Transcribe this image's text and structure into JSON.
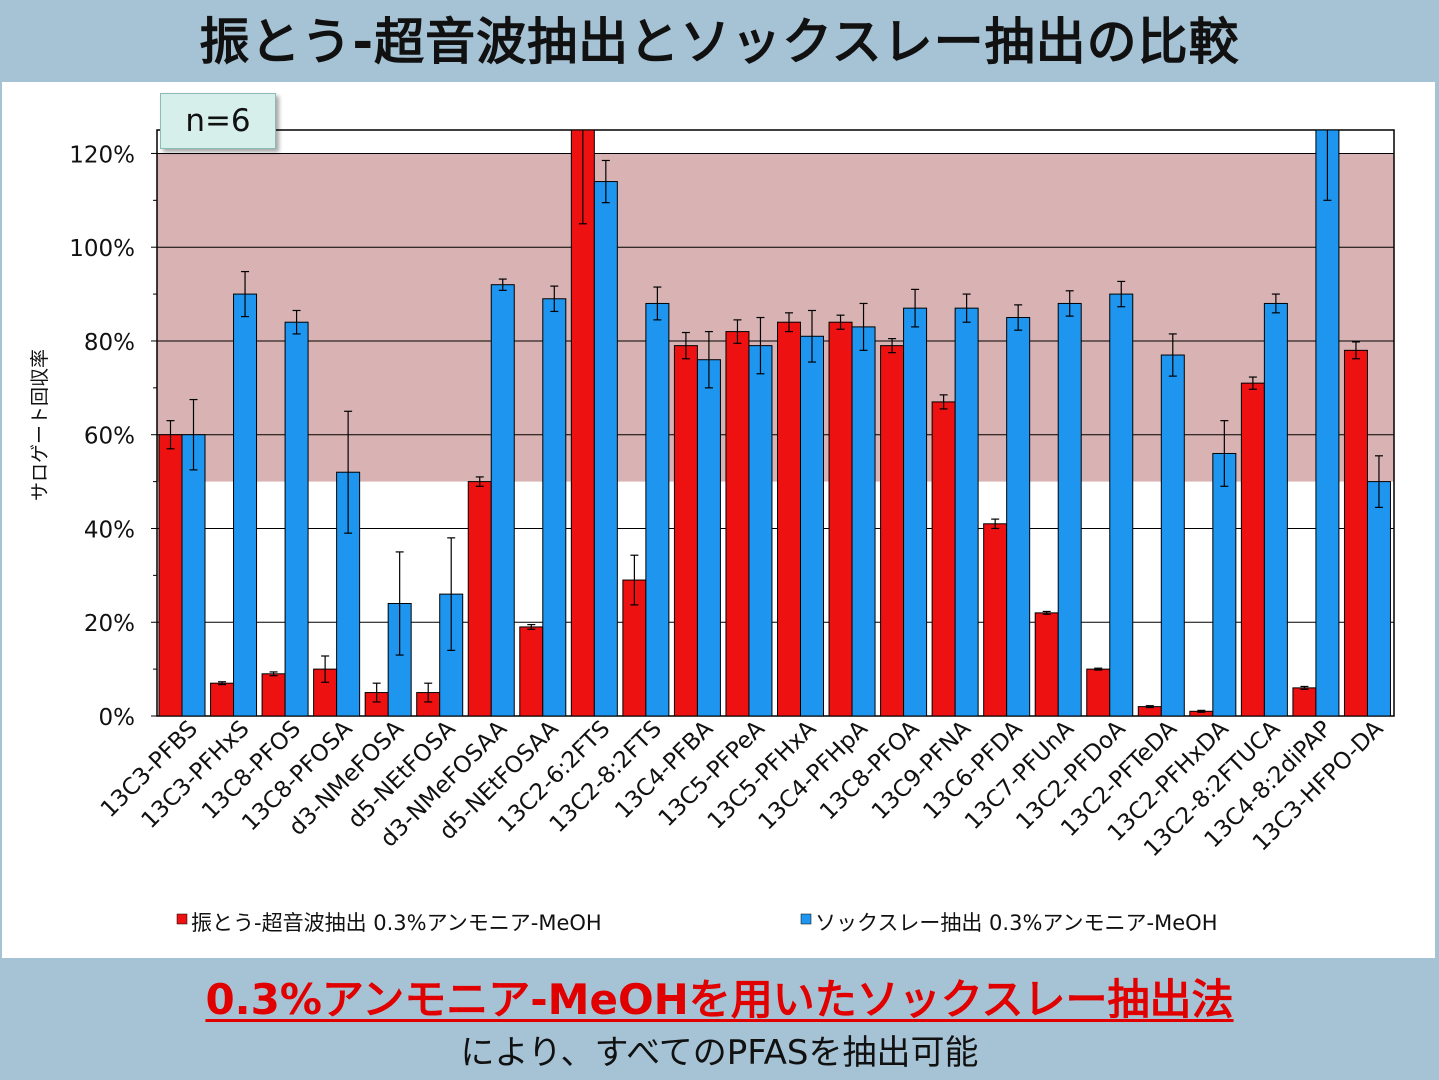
{
  "slide_title": "振とう-超音波抽出とソックスレー抽出の比較",
  "badge": "n=6",
  "footer": {
    "highlight": "0.3%アンモニア-MeOHを用いたソックスレー抽出法",
    "sub": "により、すべてのPFASを抽出可能"
  },
  "colors": {
    "series1": "#ee1111",
    "series2": "#1e96f0",
    "band": "#d9b3b3",
    "background": "#a6c3d6"
  },
  "chart_data": {
    "type": "bar",
    "ylabel": "サロゲート回収率",
    "ylim": [
      0,
      1.25
    ],
    "yticks": [
      "0%",
      "20%",
      "40%",
      "60%",
      "80%",
      "100%",
      "120%"
    ],
    "shaded_range": [
      0.5,
      1.2
    ],
    "legend_placement": "bottom",
    "categories": [
      "13C3-PFBS",
      "13C3-PFHxS",
      "13C8-PFOS",
      "13C8-PFOSA",
      "d3-NMeFOSA",
      "d5-NEtFOSA",
      "d3-NMeFOSAA",
      "d5-NEtFOSAA",
      "13C2-6:2FTS",
      "13C2-8:2FTS",
      "13C4-PFBA",
      "13C5-PFPeA",
      "13C5-PFHxA",
      "13C4-PFHpA",
      "13C8-PFOA",
      "13C9-PFNA",
      "13C6-PFDA",
      "13C7-PFUnA",
      "13C2-PFDoA",
      "13C2-PFTeDA",
      "13C2-PFHxDA",
      "13C2-8:2FTUCA",
      "13C4-8:2diPAP",
      "13C3-HFPO-DA"
    ],
    "series": [
      {
        "name": "振とう-超音波抽出 0.3%アンモニア-MeOH",
        "values": [
          0.6,
          0.07,
          0.09,
          0.1,
          0.05,
          0.05,
          0.5,
          0.19,
          1.3,
          0.29,
          0.79,
          0.82,
          0.84,
          0.84,
          0.79,
          0.67,
          0.41,
          0.22,
          0.1,
          0.02,
          0.01,
          0.71,
          0.06,
          0.78
        ],
        "errors": [
          0.03,
          0.003,
          0.004,
          0.028,
          0.02,
          0.02,
          0.01,
          0.005,
          0.25,
          0.053,
          0.028,
          0.025,
          0.02,
          0.015,
          0.015,
          0.015,
          0.01,
          0.003,
          0.002,
          0.002,
          0.002,
          0.013,
          0.003,
          0.018
        ]
      },
      {
        "name": "ソックスレー抽出 0.3%アンモニア-MeOH",
        "values": [
          0.6,
          0.9,
          0.84,
          0.52,
          0.24,
          0.26,
          0.92,
          0.89,
          1.14,
          0.88,
          0.76,
          0.79,
          0.81,
          0.83,
          0.87,
          0.87,
          0.85,
          0.88,
          0.9,
          0.77,
          0.56,
          0.88,
          1.3,
          0.5
        ],
        "errors": [
          0.075,
          0.048,
          0.025,
          0.13,
          0.11,
          0.12,
          0.012,
          0.027,
          0.045,
          0.035,
          0.06,
          0.06,
          0.055,
          0.05,
          0.04,
          0.03,
          0.027,
          0.027,
          0.027,
          0.045,
          0.07,
          0.02,
          0.2,
          0.055
        ]
      }
    ]
  }
}
